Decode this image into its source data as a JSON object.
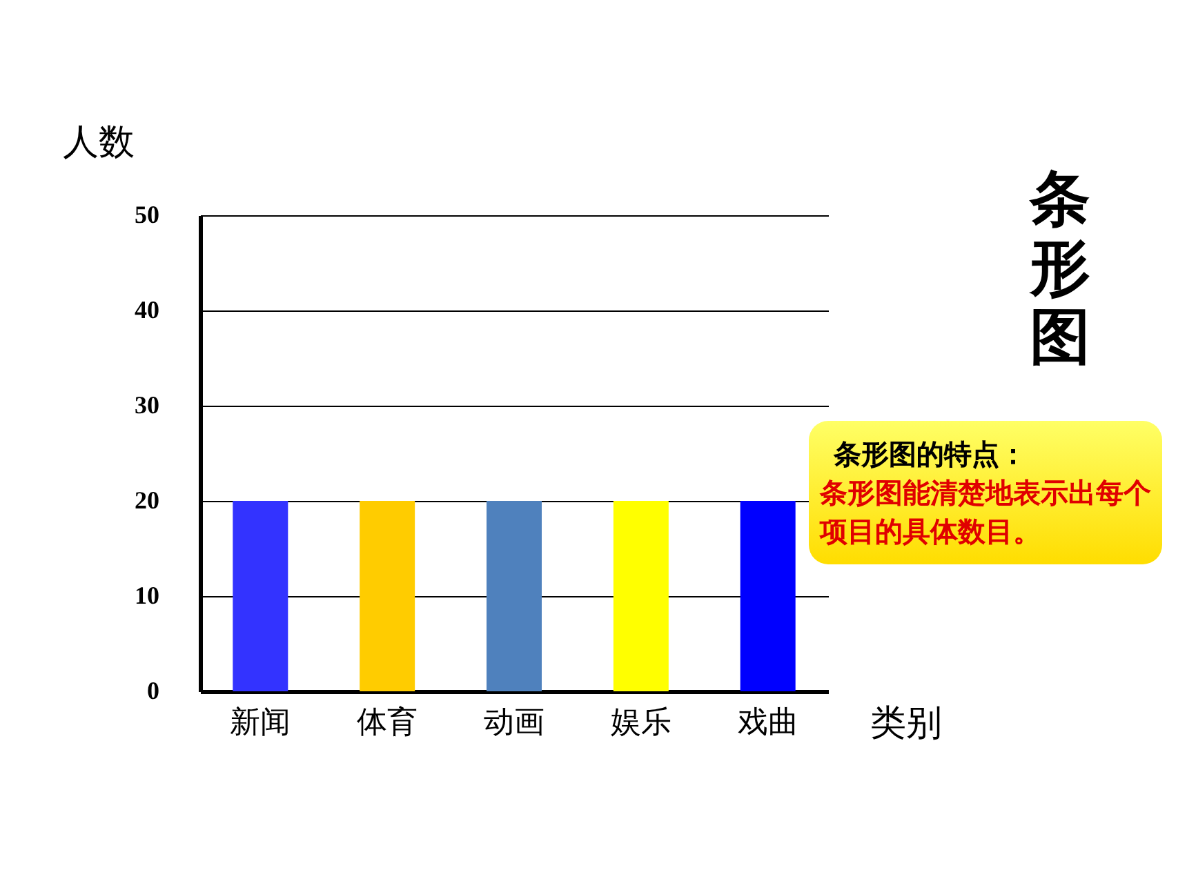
{
  "chart_data": {
    "type": "bar",
    "title": "条形图",
    "xlabel": "类别",
    "ylabel": "人数",
    "categories": [
      "新闻",
      "体育",
      "动画",
      "娱乐",
      "戏曲"
    ],
    "values": [
      20,
      20,
      20,
      20,
      20
    ],
    "colors": [
      "#3333ff",
      "#ffcc00",
      "#4f81bd",
      "#ffff00",
      "#0000ff"
    ],
    "ylim": [
      0,
      50
    ],
    "yticks": [
      0,
      10,
      20,
      30,
      40,
      50
    ],
    "grid": "y",
    "annotations": [
      "条形图的特点：",
      "条形图能清楚地表示出每个项目的具体数目。"
    ]
  }
}
